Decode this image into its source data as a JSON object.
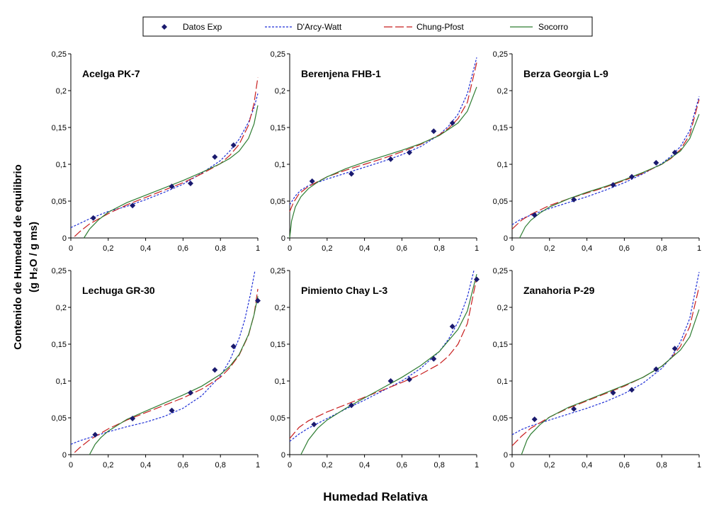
{
  "chart_data": {
    "type": "line",
    "ylabel_line1": "Contenido de Humedad de equilibrio",
    "ylabel_line2": "(g H₂O / g ms)",
    "xlabel": "Humedad Relativa",
    "xlim": [
      0,
      1
    ],
    "ylim": [
      0,
      0.25
    ],
    "x_ticks": [
      0,
      0.2,
      0.4,
      0.6,
      0.8,
      1
    ],
    "x_tick_labels": [
      "0",
      "0,2",
      "0,4",
      "0,6",
      "0,8",
      "1"
    ],
    "y_ticks": [
      0,
      0.05,
      0.1,
      0.15,
      0.2,
      0.25
    ],
    "y_tick_labels": [
      "0",
      "0,05",
      "0,1",
      "0,15",
      "0,2",
      "0,25"
    ],
    "grid": false,
    "legend_position": "top",
    "legend": [
      {
        "name": "Datos Exp",
        "style": "marker",
        "color": "#1a1a6e"
      },
      {
        "name": "D'Arcy-Watt",
        "style": "dotted",
        "color": "#1f2fd6"
      },
      {
        "name": "Chung-Pfost",
        "style": "dashed",
        "color": "#c81e1e"
      },
      {
        "name": "Socorro",
        "style": "solid",
        "color": "#2e7d32"
      }
    ],
    "panels": [
      {
        "title": "Acelga PK-7",
        "experimental": [
          [
            0.12,
            0.027
          ],
          [
            0.33,
            0.044
          ],
          [
            0.54,
            0.07
          ],
          [
            0.64,
            0.074
          ],
          [
            0.77,
            0.11
          ],
          [
            0.87,
            0.126
          ]
        ],
        "series": [
          {
            "name": "D'Arcy-Watt",
            "x": [
              0,
              0.05,
              0.1,
              0.2,
              0.3,
              0.4,
              0.5,
              0.6,
              0.7,
              0.8,
              0.85,
              0.9,
              0.95,
              0.98,
              1.0
            ],
            "y": [
              0.014,
              0.02,
              0.026,
              0.036,
              0.043,
              0.052,
              0.062,
              0.073,
              0.088,
              0.105,
              0.118,
              0.134,
              0.157,
              0.177,
              0.196
            ]
          },
          {
            "name": "Chung-Pfost",
            "x": [
              0.02,
              0.05,
              0.1,
              0.2,
              0.3,
              0.4,
              0.5,
              0.6,
              0.7,
              0.8,
              0.85,
              0.9,
              0.95,
              0.98,
              1.0
            ],
            "y": [
              0.002,
              0.009,
              0.019,
              0.033,
              0.045,
              0.055,
              0.065,
              0.075,
              0.087,
              0.101,
              0.112,
              0.127,
              0.153,
              0.183,
              0.218
            ]
          },
          {
            "name": "Socorro",
            "x": [
              0.07,
              0.1,
              0.15,
              0.2,
              0.3,
              0.4,
              0.5,
              0.6,
              0.7,
              0.8,
              0.85,
              0.9,
              0.95,
              0.98,
              1.0
            ],
            "y": [
              0.0,
              0.012,
              0.025,
              0.035,
              0.048,
              0.058,
              0.068,
              0.078,
              0.089,
              0.101,
              0.108,
              0.118,
              0.135,
              0.155,
              0.18
            ]
          }
        ]
      },
      {
        "title": "Berenjena FHB-1",
        "experimental": [
          [
            0.12,
            0.077
          ],
          [
            0.33,
            0.087
          ],
          [
            0.54,
            0.107
          ],
          [
            0.64,
            0.116
          ],
          [
            0.77,
            0.145
          ],
          [
            0.87,
            0.156
          ]
        ],
        "series": [
          {
            "name": "D'Arcy-Watt",
            "x": [
              0,
              0.03,
              0.06,
              0.1,
              0.2,
              0.3,
              0.4,
              0.5,
              0.6,
              0.7,
              0.8,
              0.85,
              0.9,
              0.95,
              1.0
            ],
            "y": [
              0.045,
              0.057,
              0.065,
              0.071,
              0.08,
              0.088,
              0.096,
              0.104,
              0.113,
              0.124,
              0.14,
              0.152,
              0.168,
              0.196,
              0.245
            ]
          },
          {
            "name": "Chung-Pfost",
            "x": [
              0,
              0.02,
              0.05,
              0.1,
              0.2,
              0.3,
              0.4,
              0.5,
              0.6,
              0.7,
              0.8,
              0.85,
              0.9,
              0.95,
              1.0
            ],
            "y": [
              0.036,
              0.048,
              0.06,
              0.07,
              0.083,
              0.092,
              0.1,
              0.108,
              0.117,
              0.127,
              0.14,
              0.149,
              0.162,
              0.184,
              0.238
            ]
          },
          {
            "name": "Socorro",
            "x": [
              0,
              0.01,
              0.03,
              0.06,
              0.1,
              0.15,
              0.2,
              0.3,
              0.4,
              0.5,
              0.6,
              0.7,
              0.8,
              0.9,
              0.95,
              1.0
            ],
            "y": [
              0.0,
              0.023,
              0.042,
              0.056,
              0.067,
              0.076,
              0.083,
              0.094,
              0.103,
              0.111,
              0.119,
              0.128,
              0.139,
              0.156,
              0.172,
              0.205
            ]
          }
        ]
      },
      {
        "title": "Berza Georgia L-9",
        "experimental": [
          [
            0.12,
            0.031
          ],
          [
            0.33,
            0.052
          ],
          [
            0.54,
            0.072
          ],
          [
            0.64,
            0.083
          ],
          [
            0.77,
            0.102
          ],
          [
            0.87,
            0.116
          ]
        ],
        "series": [
          {
            "name": "D'Arcy-Watt",
            "x": [
              0,
              0.05,
              0.1,
              0.2,
              0.3,
              0.4,
              0.5,
              0.6,
              0.7,
              0.8,
              0.85,
              0.9,
              0.95,
              1.0
            ],
            "y": [
              0.018,
              0.026,
              0.031,
              0.04,
              0.048,
              0.056,
              0.065,
              0.075,
              0.087,
              0.101,
              0.111,
              0.124,
              0.146,
              0.192
            ]
          },
          {
            "name": "Chung-Pfost",
            "x": [
              0,
              0.05,
              0.1,
              0.2,
              0.3,
              0.4,
              0.5,
              0.6,
              0.7,
              0.8,
              0.85,
              0.9,
              0.95,
              1.0
            ],
            "y": [
              0.012,
              0.024,
              0.032,
              0.044,
              0.053,
              0.061,
              0.069,
              0.078,
              0.088,
              0.1,
              0.108,
              0.12,
              0.14,
              0.188
            ]
          },
          {
            "name": "Socorro",
            "x": [
              0.04,
              0.07,
              0.1,
              0.15,
              0.2,
              0.3,
              0.4,
              0.5,
              0.6,
              0.7,
              0.8,
              0.9,
              0.95,
              1.0
            ],
            "y": [
              0.0,
              0.015,
              0.024,
              0.034,
              0.042,
              0.053,
              0.062,
              0.07,
              0.079,
              0.089,
              0.1,
              0.118,
              0.135,
              0.168
            ]
          }
        ]
      },
      {
        "title": "Lechuga GR-30",
        "experimental": [
          [
            0.13,
            0.027
          ],
          [
            0.33,
            0.049
          ],
          [
            0.54,
            0.06
          ],
          [
            0.64,
            0.084
          ],
          [
            0.77,
            0.115
          ],
          [
            0.87,
            0.147
          ],
          [
            1.0,
            0.209
          ]
        ],
        "series": [
          {
            "name": "D'Arcy-Watt",
            "x": [
              0,
              0.05,
              0.1,
              0.2,
              0.3,
              0.4,
              0.5,
              0.6,
              0.7,
              0.8,
              0.85,
              0.9,
              0.93,
              0.96,
              0.985
            ],
            "y": [
              0.014,
              0.019,
              0.023,
              0.031,
              0.038,
              0.044,
              0.052,
              0.063,
              0.08,
              0.107,
              0.128,
              0.158,
              0.183,
              0.217,
              0.25
            ]
          },
          {
            "name": "Chung-Pfost",
            "x": [
              0.02,
              0.05,
              0.1,
              0.2,
              0.3,
              0.4,
              0.5,
              0.6,
              0.7,
              0.8,
              0.85,
              0.9,
              0.95,
              0.98,
              1.0
            ],
            "y": [
              0.003,
              0.01,
              0.02,
              0.035,
              0.047,
              0.057,
              0.067,
              0.077,
              0.089,
              0.105,
              0.118,
              0.135,
              0.162,
              0.19,
              0.225
            ]
          },
          {
            "name": "Socorro",
            "x": [
              0.1,
              0.13,
              0.16,
              0.2,
              0.3,
              0.4,
              0.5,
              0.6,
              0.7,
              0.8,
              0.85,
              0.9,
              0.95,
              0.98,
              1.0
            ],
            "y": [
              0.0,
              0.014,
              0.023,
              0.032,
              0.048,
              0.059,
              0.07,
              0.081,
              0.093,
              0.109,
              0.12,
              0.136,
              0.163,
              0.19,
              0.215
            ]
          }
        ]
      },
      {
        "title": "Pimiento Chay L-3",
        "experimental": [
          [
            0.13,
            0.041
          ],
          [
            0.33,
            0.067
          ],
          [
            0.54,
            0.1
          ],
          [
            0.64,
            0.102
          ],
          [
            0.77,
            0.13
          ],
          [
            0.87,
            0.174
          ],
          [
            1.0,
            0.238
          ]
        ],
        "series": [
          {
            "name": "D'Arcy-Watt",
            "x": [
              0,
              0.05,
              0.1,
              0.2,
              0.3,
              0.4,
              0.5,
              0.6,
              0.7,
              0.8,
              0.85,
              0.9,
              0.95,
              0.985
            ],
            "y": [
              0.018,
              0.028,
              0.036,
              0.049,
              0.062,
              0.074,
              0.087,
              0.1,
              0.117,
              0.14,
              0.157,
              0.18,
              0.214,
              0.25
            ]
          },
          {
            "name": "Chung-Pfost",
            "x": [
              0,
              0.05,
              0.1,
              0.2,
              0.3,
              0.4,
              0.5,
              0.6,
              0.7,
              0.8,
              0.85,
              0.9,
              0.95,
              1.0
            ],
            "y": [
              0.022,
              0.037,
              0.046,
              0.058,
              0.068,
              0.078,
              0.088,
              0.098,
              0.109,
              0.123,
              0.134,
              0.15,
              0.178,
              0.24
            ]
          },
          {
            "name": "Socorro",
            "x": [
              0.06,
              0.08,
              0.1,
              0.15,
              0.2,
              0.3,
              0.4,
              0.5,
              0.6,
              0.7,
              0.8,
              0.9,
              0.95,
              1.0
            ],
            "y": [
              0.0,
              0.01,
              0.02,
              0.036,
              0.047,
              0.063,
              0.077,
              0.091,
              0.105,
              0.121,
              0.14,
              0.17,
              0.195,
              0.245
            ]
          }
        ]
      },
      {
        "title": "Zanahoria P-29",
        "experimental": [
          [
            0.12,
            0.048
          ],
          [
            0.33,
            0.062
          ],
          [
            0.54,
            0.084
          ],
          [
            0.64,
            0.088
          ],
          [
            0.77,
            0.116
          ],
          [
            0.87,
            0.144
          ]
        ],
        "series": [
          {
            "name": "D'Arcy-Watt",
            "x": [
              0,
              0.05,
              0.1,
              0.2,
              0.3,
              0.4,
              0.5,
              0.6,
              0.7,
              0.8,
              0.85,
              0.9,
              0.95,
              1.0
            ],
            "y": [
              0.027,
              0.034,
              0.039,
              0.047,
              0.055,
              0.063,
              0.072,
              0.083,
              0.097,
              0.117,
              0.132,
              0.153,
              0.185,
              0.248
            ]
          },
          {
            "name": "Chung-Pfost",
            "x": [
              0,
              0.05,
              0.1,
              0.2,
              0.3,
              0.4,
              0.5,
              0.6,
              0.7,
              0.8,
              0.85,
              0.9,
              0.95,
              1.0
            ],
            "y": [
              0.012,
              0.025,
              0.036,
              0.051,
              0.063,
              0.073,
              0.083,
              0.093,
              0.105,
              0.12,
              0.131,
              0.147,
              0.174,
              0.228
            ]
          },
          {
            "name": "Socorro",
            "x": [
              0.05,
              0.08,
              0.1,
              0.15,
              0.2,
              0.3,
              0.4,
              0.5,
              0.6,
              0.7,
              0.8,
              0.9,
              0.95,
              1.0
            ],
            "y": [
              0.0,
              0.02,
              0.028,
              0.041,
              0.051,
              0.064,
              0.074,
              0.084,
              0.094,
              0.105,
              0.12,
              0.142,
              0.16,
              0.197
            ]
          }
        ]
      }
    ]
  }
}
